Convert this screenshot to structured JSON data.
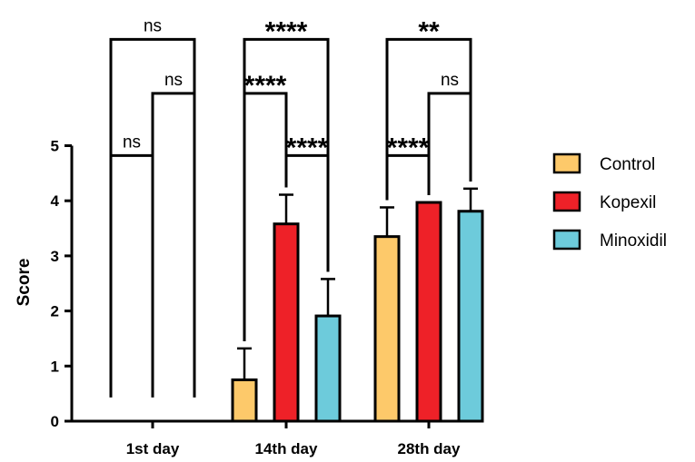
{
  "chart_data": {
    "type": "bar",
    "title": "",
    "xlabel": "",
    "ylabel": "Score",
    "ylim": [
      0,
      5
    ],
    "yticks": [
      "0",
      "1",
      "2",
      "3",
      "4",
      "5"
    ],
    "categories": [
      "1st day",
      "14th day",
      "28th day"
    ],
    "series": [
      {
        "name": "Control",
        "color": "#FDC96A",
        "values": [
          0,
          0.75,
          3.35
        ],
        "errors": [
          0,
          0.57,
          0.53
        ]
      },
      {
        "name": "Kopexil",
        "color": "#EE2128",
        "values": [
          0,
          3.58,
          3.97
        ],
        "errors": [
          0,
          0.53,
          0
        ]
      },
      {
        "name": "Minoxidil",
        "color": "#6DCBDB",
        "values": [
          0,
          1.91,
          3.81
        ],
        "errors": [
          0,
          0.67,
          0.41
        ]
      }
    ],
    "legend_position": "right",
    "significance": [
      {
        "category": 0,
        "from": 0,
        "to": 1,
        "label": "ns",
        "y": 4.82
      },
      {
        "category": 0,
        "from": 1,
        "to": 2,
        "label": "ns",
        "y": 5.95
      },
      {
        "category": 0,
        "from": 0,
        "to": 2,
        "label": "ns",
        "y": 6.93
      },
      {
        "category": 1,
        "from": 1,
        "to": 2,
        "label": "****",
        "y": 4.82
      },
      {
        "category": 1,
        "from": 0,
        "to": 1,
        "label": "****",
        "y": 5.95
      },
      {
        "category": 1,
        "from": 0,
        "to": 2,
        "label": "****",
        "y": 6.93
      },
      {
        "category": 2,
        "from": 0,
        "to": 1,
        "label": "****",
        "y": 4.82
      },
      {
        "category": 2,
        "from": 1,
        "to": 2,
        "label": "ns",
        "y": 5.95
      },
      {
        "category": 2,
        "from": 0,
        "to": 2,
        "label": "**",
        "y": 6.93
      }
    ]
  }
}
